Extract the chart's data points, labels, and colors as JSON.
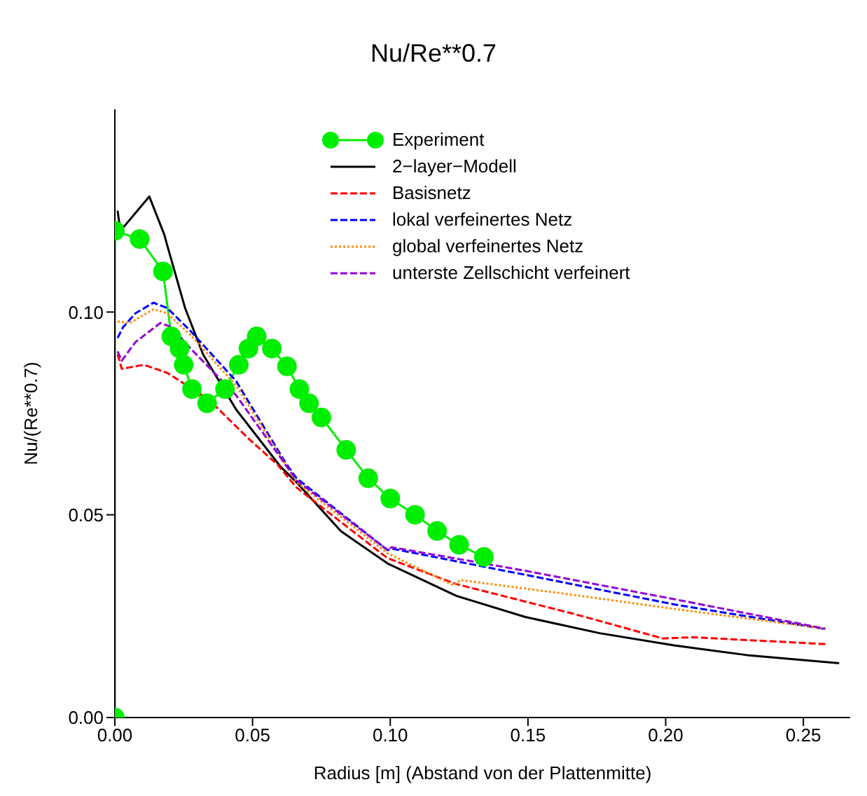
{
  "chart_data": {
    "type": "line",
    "title": "Nu/Re**0.7",
    "xlabel": "Radius [m] (Abstand von der Plattenmitte)",
    "ylabel": "Nu/(Re**0.7)",
    "xlim": [
      0,
      0.267
    ],
    "xticks": [
      {
        "value": 0,
        "label": "0.00"
      },
      0.05,
      {
        "value": 0.1,
        "label": "0.10"
      },
      0.15,
      {
        "value": 0.2,
        "label": "0.20"
      },
      0.25
    ],
    "ylim": [
      0,
      0.15
    ],
    "yticks": [
      {
        "value": 0,
        "label": "0.00"
      },
      0.05,
      {
        "value": 0.1,
        "label": "0.10"
      }
    ],
    "legend": "top",
    "series": [
      {
        "name": "Experiment",
        "color": "#00ee00",
        "marker": "circle",
        "line_style": "solid",
        "x": [
          0,
          0,
          0.009,
          0.0175,
          0.0205,
          0.0235,
          0.025,
          0.028,
          0.0335,
          0.04,
          0.045,
          0.0485,
          0.0515,
          0.057,
          0.0625,
          0.067,
          0.0705,
          0.075,
          0.084,
          0.092,
          0.1,
          0.109,
          0.117,
          0.125,
          0.134
        ],
        "values": [
          0,
          0.12,
          0.118,
          0.11,
          0.094,
          0.091,
          0.087,
          0.081,
          0.0775,
          0.081,
          0.087,
          0.091,
          0.094,
          0.091,
          0.0866,
          0.081,
          0.0775,
          0.074,
          0.066,
          0.059,
          0.054,
          0.05,
          0.046,
          0.0426,
          0.0396
        ]
      },
      {
        "name": "2−layer−Modell",
        "color": "#000000",
        "marker": "none",
        "line_style": "solid",
        "x": [
          0.001,
          0.002,
          0.0125,
          0.018,
          0.019,
          0.0255,
          0.032,
          0.044,
          0.06,
          0.066,
          0.082,
          0.099,
          0.124,
          0.149,
          0.176,
          0.203,
          0.2295,
          0.263
        ],
        "values": [
          0.125,
          0.12,
          0.1285,
          0.119,
          0.1165,
          0.101,
          0.0896,
          0.076,
          0.062,
          0.058,
          0.046,
          0.038,
          0.03,
          0.0248,
          0.0208,
          0.0178,
          0.0154,
          0.0134
        ]
      },
      {
        "name": "Basisnetz",
        "color": "#ff0000",
        "marker": "none",
        "line_style": "dashed",
        "x": [
          0.001,
          0.0025,
          0.0105,
          0.019,
          0.034,
          0.0425,
          0.049,
          0.059,
          0.066,
          0.099,
          0.124,
          0.167,
          0.199,
          0.21,
          0.258
        ],
        "values": [
          0.0896,
          0.086,
          0.087,
          0.085,
          0.0785,
          0.0728,
          0.0685,
          0.0624,
          0.0567,
          0.0393,
          0.0329,
          0.0255,
          0.0195,
          0.0198,
          0.0181
        ]
      },
      {
        "name": "lokal verfeinertes Netz",
        "color": "#0000ff",
        "marker": "none",
        "line_style": "dashed",
        "x": [
          0.001,
          0.003,
          0.0075,
          0.014,
          0.019,
          0.0275,
          0.044,
          0.062,
          0.066,
          0.099,
          0.101,
          0.149,
          0.203,
          0.258
        ],
        "values": [
          0.0936,
          0.0963,
          0.0997,
          0.1023,
          0.101,
          0.0953,
          0.083,
          0.0628,
          0.059,
          0.0413,
          0.0416,
          0.0352,
          0.0279,
          0.0218
        ]
      },
      {
        "name": "global verfeinertes Netz",
        "color": "#ff8c00",
        "marker": "none",
        "line_style": "dotted",
        "x": [
          0.001,
          0.0055,
          0.014,
          0.019,
          0.0275,
          0.044,
          0.066,
          0.099,
          0.123,
          0.1255,
          0.167,
          0.203,
          0.258
        ],
        "values": [
          0.0977,
          0.0973,
          0.1007,
          0.0997,
          0.0943,
          0.0819,
          0.058,
          0.0405,
          0.0326,
          0.0339,
          0.0302,
          0.0268,
          0.0219
        ]
      },
      {
        "name": "unterste Zellschicht verfeinert",
        "color": "#9400d3",
        "marker": "none",
        "line_style": "dashed",
        "x": [
          0.001,
          0.0025,
          0.0075,
          0.0165,
          0.0205,
          0.0275,
          0.044,
          0.066,
          0.099,
          0.1005,
          0.149,
          0.203,
          0.258
        ],
        "values": [
          0.0903,
          0.088,
          0.0926,
          0.0973,
          0.0963,
          0.091,
          0.0795,
          0.0585,
          0.0413,
          0.042,
          0.0362,
          0.0292,
          0.0219
        ]
      }
    ]
  }
}
